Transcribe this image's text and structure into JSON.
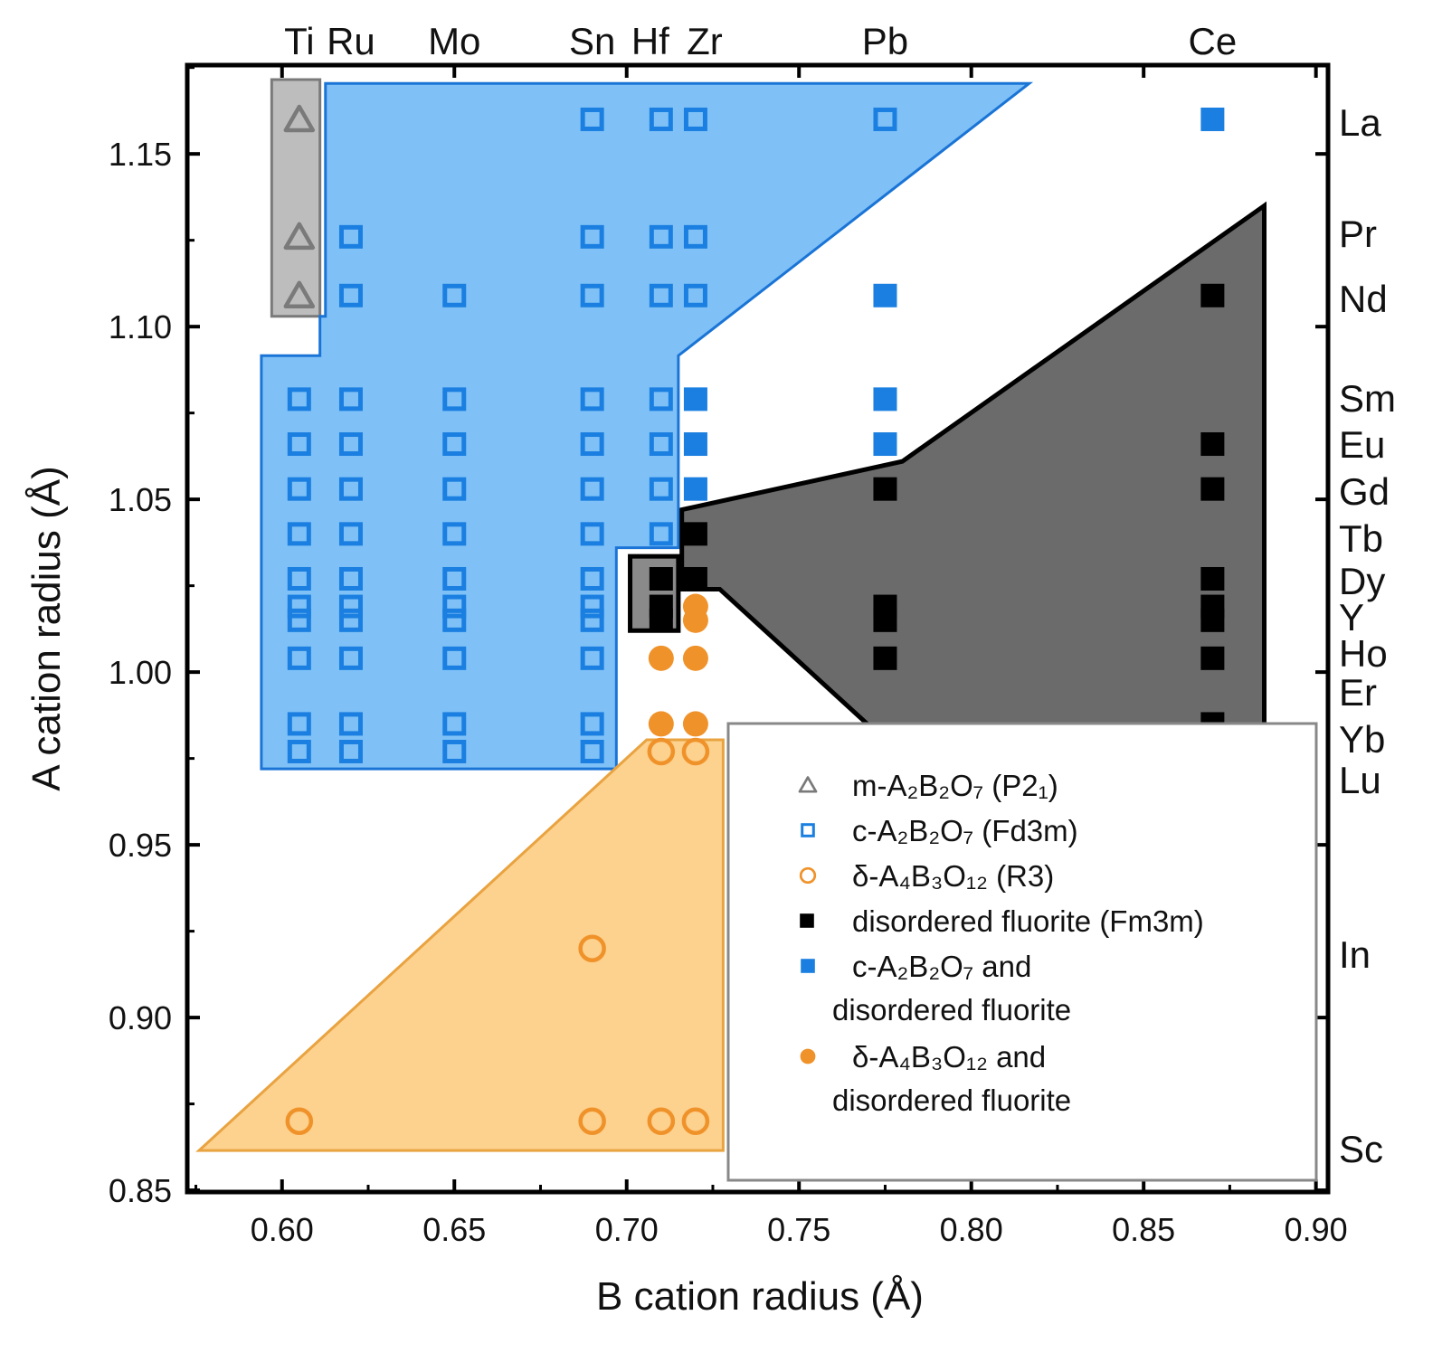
{
  "chart_data": {
    "type": "scatter",
    "xlabel": "B cation radius (Å)",
    "ylabel": "A cation radius (Å)",
    "xlim": [
      0.5725,
      0.9035
    ],
    "ylim": [
      0.8495,
      1.1757
    ],
    "xticks": [
      "0.60",
      "0.65",
      "0.70",
      "0.75",
      "0.80",
      "0.85",
      "0.90"
    ],
    "yticks": [
      "0.85",
      "0.90",
      "0.95",
      "1.00",
      "1.05",
      "1.10",
      "1.15"
    ],
    "grid": false,
    "legend_position": "bottom-right",
    "b_cations": [
      {
        "label": "Ti",
        "r": 0.605
      },
      {
        "label": "Ru",
        "r": 0.62
      },
      {
        "label": "Mo",
        "r": 0.65
      },
      {
        "label": "Sn",
        "r": 0.69
      },
      {
        "label": "Hf",
        "r": 0.71
      },
      {
        "label": "Zr",
        "r": 0.72
      },
      {
        "label": "Pb",
        "r": 0.775
      },
      {
        "label": "Ce",
        "r": 0.87
      }
    ],
    "a_cations": [
      {
        "label": "La",
        "r": 1.16
      },
      {
        "label": "Pr",
        "r": 1.126
      },
      {
        "label": "Nd",
        "r": 1.109
      },
      {
        "label": "Sm",
        "r": 1.079
      },
      {
        "label": "Eu",
        "r": 1.066
      },
      {
        "label": "Gd",
        "r": 1.053
      },
      {
        "label": "Tb",
        "r": 1.04
      },
      {
        "label": "Dy",
        "r": 1.027
      },
      {
        "label": "Y",
        "r": 1.019
      },
      {
        "label": "Ho",
        "r": 1.015
      },
      {
        "label": "Er",
        "r": 1.004
      },
      {
        "label": "Yb",
        "r": 0.985
      },
      {
        "label": "Lu",
        "r": 0.977
      },
      {
        "label": "In",
        "r": 0.92
      },
      {
        "label": "Sc",
        "r": 0.87
      }
    ],
    "regions": [
      {
        "name": "monoclinic",
        "color": "#bdbdbd",
        "stroke": "#7a7a7a",
        "points": [
          [
            0.597,
            1.1715
          ],
          [
            0.611,
            1.1715
          ],
          [
            0.611,
            1.103
          ],
          [
            0.597,
            1.103
          ]
        ]
      },
      {
        "name": "pyrochlore",
        "color": "#7fc1f6",
        "stroke": "#1a74d6",
        "points": [
          [
            0.6126,
            1.1704
          ],
          [
            0.8168,
            1.1704
          ],
          [
            0.715,
            1.0916
          ],
          [
            0.715,
            1.036
          ],
          [
            0.697,
            1.036
          ],
          [
            0.697,
            0.972
          ],
          [
            0.594,
            0.972
          ],
          [
            0.594,
            1.0916
          ],
          [
            0.611,
            1.0916
          ],
          [
            0.611,
            1.103
          ],
          [
            0.6126,
            1.103
          ]
        ]
      },
      {
        "name": "delta",
        "color": "#fdd18e",
        "stroke": "#e9a340",
        "points": [
          [
            0.5759,
            0.8615
          ],
          [
            0.7058,
            0.9804
          ],
          [
            0.728,
            0.9804
          ],
          [
            0.728,
            0.8615
          ]
        ]
      },
      {
        "name": "fluorite",
        "color": "#6b6b6b",
        "stroke": "#000000",
        "points": [
          [
            0.716,
            1.047
          ],
          [
            0.78,
            1.061
          ],
          [
            0.885,
            1.135
          ],
          [
            0.885,
            0.983
          ],
          [
            0.772,
            0.983
          ],
          [
            0.727,
            1.024
          ],
          [
            0.716,
            1.024
          ]
        ]
      },
      {
        "name": "fluorite-small",
        "color": "#8a8a8a",
        "stroke": "#000000",
        "points": [
          [
            0.701,
            1.0335
          ],
          [
            0.715,
            1.0335
          ],
          [
            0.715,
            1.012
          ],
          [
            0.701,
            1.012
          ]
        ]
      }
    ],
    "series": [
      {
        "name": "m-A₂B₂O₇ (P2₁)",
        "marker": "triangle-open",
        "color": "#7a7a7a",
        "points": [
          [
            "Ti",
            "La"
          ],
          [
            "Ti",
            "Pr"
          ],
          [
            "Ti",
            "Nd"
          ]
        ]
      },
      {
        "name": "c-A₂B₂O₇ (Fd3m)",
        "marker": "square-open",
        "color": "#1a7fe0",
        "points": [
          [
            "Ti",
            "Sm"
          ],
          [
            "Ti",
            "Eu"
          ],
          [
            "Ti",
            "Gd"
          ],
          [
            "Ti",
            "Tb"
          ],
          [
            "Ti",
            "Dy"
          ],
          [
            "Ti",
            "Y"
          ],
          [
            "Ti",
            "Ho"
          ],
          [
            "Ti",
            "Er"
          ],
          [
            "Ti",
            "Yb"
          ],
          [
            "Ti",
            "Lu"
          ],
          [
            "Ru",
            "Pr"
          ],
          [
            "Ru",
            "Nd"
          ],
          [
            "Ru",
            "Sm"
          ],
          [
            "Ru",
            "Eu"
          ],
          [
            "Ru",
            "Gd"
          ],
          [
            "Ru",
            "Tb"
          ],
          [
            "Ru",
            "Dy"
          ],
          [
            "Ru",
            "Y"
          ],
          [
            "Ru",
            "Ho"
          ],
          [
            "Ru",
            "Er"
          ],
          [
            "Ru",
            "Yb"
          ],
          [
            "Ru",
            "Lu"
          ],
          [
            "Mo",
            "Nd"
          ],
          [
            "Mo",
            "Sm"
          ],
          [
            "Mo",
            "Eu"
          ],
          [
            "Mo",
            "Gd"
          ],
          [
            "Mo",
            "Tb"
          ],
          [
            "Mo",
            "Dy"
          ],
          [
            "Mo",
            "Y"
          ],
          [
            "Mo",
            "Ho"
          ],
          [
            "Mo",
            "Er"
          ],
          [
            "Mo",
            "Yb"
          ],
          [
            "Mo",
            "Lu"
          ],
          [
            "Sn",
            "La"
          ],
          [
            "Sn",
            "Pr"
          ],
          [
            "Sn",
            "Nd"
          ],
          [
            "Sn",
            "Sm"
          ],
          [
            "Sn",
            "Eu"
          ],
          [
            "Sn",
            "Gd"
          ],
          [
            "Sn",
            "Tb"
          ],
          [
            "Sn",
            "Dy"
          ],
          [
            "Sn",
            "Y"
          ],
          [
            "Sn",
            "Ho"
          ],
          [
            "Sn",
            "Er"
          ],
          [
            "Sn",
            "Yb"
          ],
          [
            "Sn",
            "Lu"
          ],
          [
            "Hf",
            "La"
          ],
          [
            "Hf",
            "Pr"
          ],
          [
            "Hf",
            "Nd"
          ],
          [
            "Hf",
            "Sm"
          ],
          [
            "Hf",
            "Eu"
          ],
          [
            "Hf",
            "Gd"
          ],
          [
            "Hf",
            "Tb"
          ],
          [
            "Zr",
            "La"
          ],
          [
            "Zr",
            "Pr"
          ],
          [
            "Zr",
            "Nd"
          ],
          [
            "Pb",
            "La"
          ]
        ]
      },
      {
        "name": "δ-A₄B₃O₁₂ (R3)",
        "marker": "circle-open",
        "color": "#f0922a",
        "points": [
          [
            "Hf",
            "Lu"
          ],
          [
            "Zr",
            "Lu"
          ],
          [
            "Sn",
            "In"
          ],
          [
            "Ti",
            "Sc"
          ],
          [
            "Sn",
            "Sc"
          ],
          [
            "Hf",
            "Sc"
          ],
          [
            "Zr",
            "Sc"
          ]
        ]
      },
      {
        "name": "disordered fluorite (Fm3m)",
        "marker": "square-filled",
        "color": "#000000",
        "points": [
          [
            "Hf",
            "Dy"
          ],
          [
            "Hf",
            "Y"
          ],
          [
            "Hf",
            "Ho"
          ],
          [
            "Zr",
            "Tb"
          ],
          [
            "Zr",
            "Dy"
          ],
          [
            "Pb",
            "Gd"
          ],
          [
            "Pb",
            "Y"
          ],
          [
            "Pb",
            "Ho"
          ],
          [
            "Pb",
            "Er"
          ],
          [
            "Ce",
            "Nd"
          ],
          [
            "Ce",
            "Eu"
          ],
          [
            "Ce",
            "Gd"
          ],
          [
            "Ce",
            "Dy"
          ],
          [
            "Ce",
            "Y"
          ],
          [
            "Ce",
            "Ho"
          ],
          [
            "Ce",
            "Er"
          ],
          [
            "Ce",
            "Yb"
          ]
        ]
      },
      {
        "name": "c-A₂B₂O₇ and|disordered fluorite",
        "marker": "square-filled",
        "color": "#1a7fe0",
        "points": [
          [
            "Ce",
            "La"
          ],
          [
            "Pb",
            "Nd"
          ],
          [
            "Pb",
            "Sm"
          ],
          [
            "Pb",
            "Eu"
          ],
          [
            "Zr",
            "Sm"
          ],
          [
            "Zr",
            "Eu"
          ],
          [
            "Zr",
            "Gd"
          ]
        ]
      },
      {
        "name": "δ-A₄B₃O₁₂ and|disordered fluorite",
        "marker": "circle-filled",
        "color": "#f0922a",
        "points": [
          [
            "Zr",
            "Y"
          ],
          [
            "Zr",
            "Ho"
          ],
          [
            "Hf",
            "Er"
          ],
          [
            "Zr",
            "Er"
          ],
          [
            "Hf",
            "Yb"
          ],
          [
            "Zr",
            "Yb"
          ]
        ]
      }
    ]
  }
}
